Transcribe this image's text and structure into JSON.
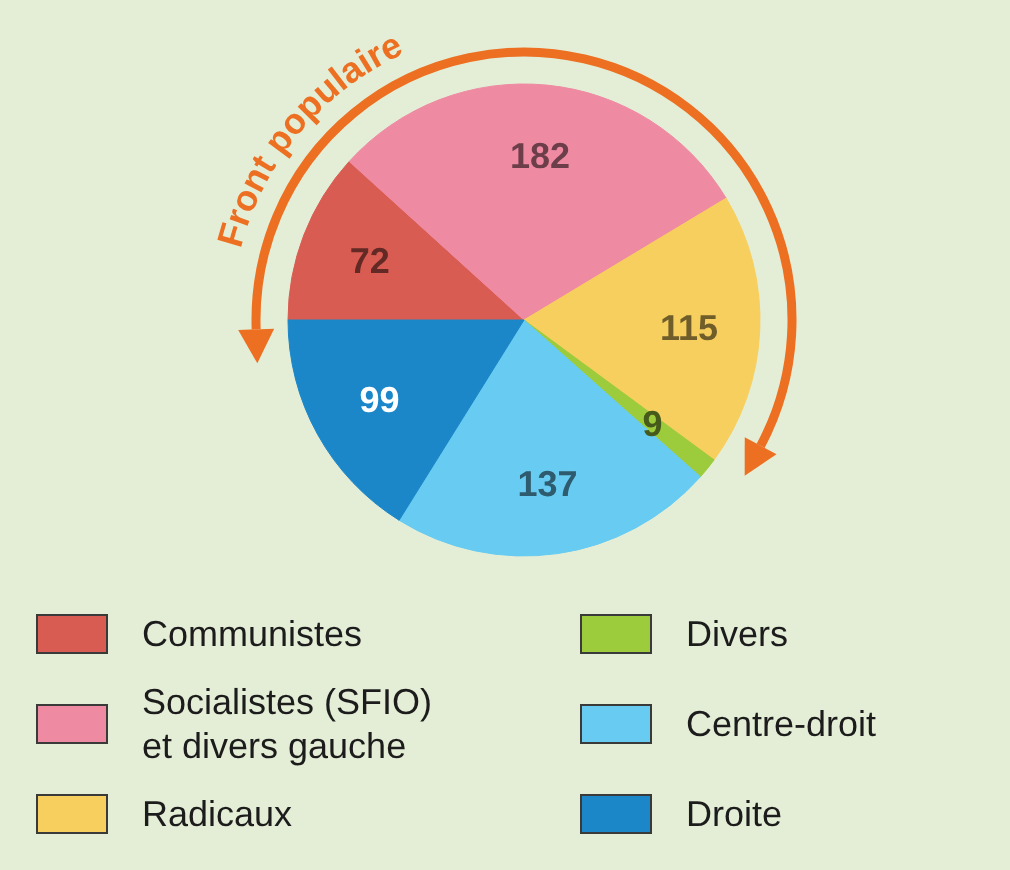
{
  "chart_data": {
    "type": "pie",
    "annotations": [
      "Front populaire"
    ],
    "categories": [
      "Communistes",
      "Socialistes (SFIO) et divers gauche",
      "Radicaux",
      "Divers",
      "Centre-droit",
      "Droite"
    ],
    "values": [
      72,
      182,
      115,
      9,
      137,
      99
    ],
    "colors": [
      "#d95c52",
      "#ef8aa3",
      "#f7cf5e",
      "#9ccb3b",
      "#67cbf2",
      "#1b87c9"
    ],
    "data_labels": true,
    "legend": "bottom"
  }
}
